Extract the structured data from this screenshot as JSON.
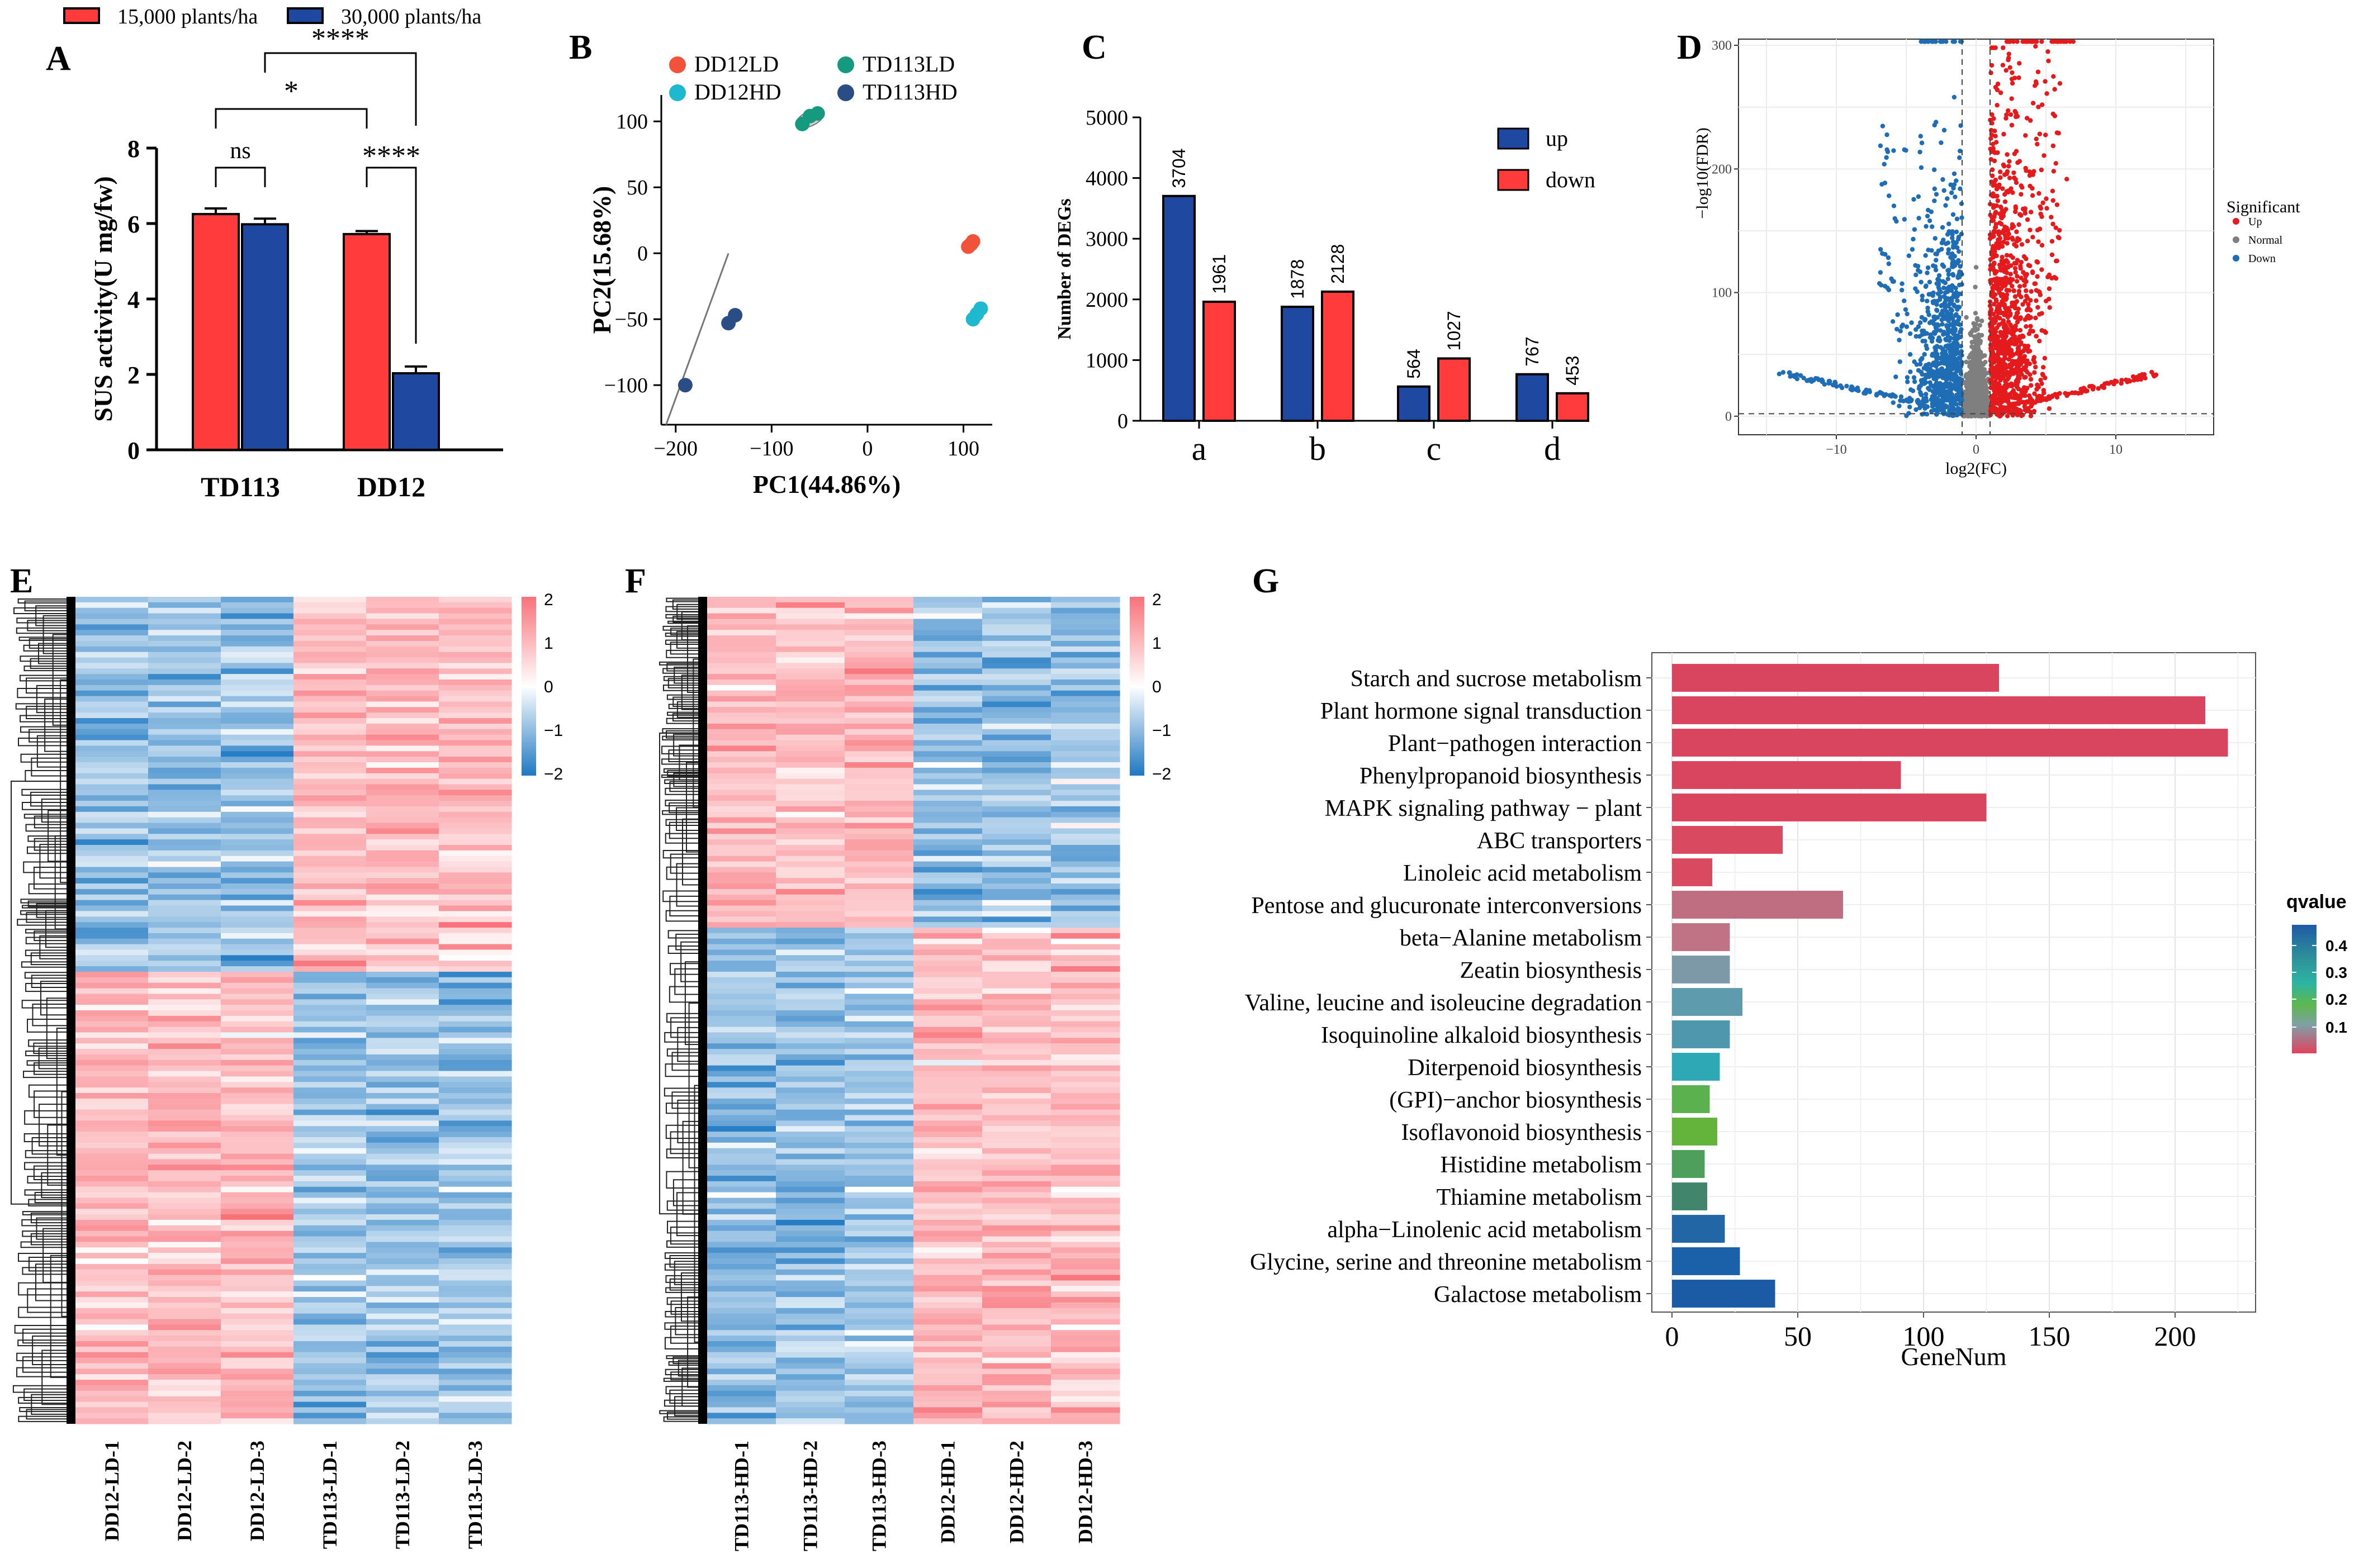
{
  "chart_data": [
    {
      "panel": "A",
      "type": "bar",
      "ylabel": "SUS activity(U mg/fw)",
      "ylim": [
        0,
        8
      ],
      "yticks": [
        0,
        2,
        4,
        6,
        8
      ],
      "categories": [
        "TD113",
        "DD12"
      ],
      "series": [
        {
          "name": "15,000 plants/ha",
          "color": "#FF3B3B",
          "values": [
            6.25,
            5.72
          ],
          "errors": [
            0.15,
            0.08
          ]
        },
        {
          "name": "30,000 plants/ha",
          "color": "#1F48A0",
          "values": [
            5.98,
            2.03
          ],
          "errors": [
            0.15,
            0.18
          ]
        }
      ],
      "annotations": [
        "ns",
        "****",
        "*",
        "****"
      ]
    },
    {
      "panel": "B",
      "type": "scatter",
      "xlabel": "PC1(44.86%)",
      "ylabel": "PC2(15.68%)",
      "xlim": [
        -215,
        130
      ],
      "ylim": [
        -130,
        120
      ],
      "xticks": [
        -200,
        -100,
        0,
        100
      ],
      "yticks": [
        -100,
        -50,
        0,
        50,
        100
      ],
      "series": [
        {
          "name": "DD12LD",
          "color": "#F0533A",
          "points": [
            [
              105,
              5
            ],
            [
              108,
              7
            ],
            [
              110,
              9
            ]
          ]
        },
        {
          "name": "DD12HD",
          "color": "#1FB9CF",
          "points": [
            [
              110,
              -50
            ],
            [
              114,
              -46
            ],
            [
              118,
              -42
            ]
          ]
        },
        {
          "name": "TD113LD",
          "color": "#159A7F",
          "points": [
            [
              -68,
              98
            ],
            [
              -60,
              104
            ],
            [
              -52,
              106
            ]
          ]
        },
        {
          "name": "TD113HD",
          "color": "#2A4D86",
          "points": [
            [
              -190,
              -100
            ],
            [
              -145,
              -53
            ],
            [
              -138,
              -47
            ]
          ]
        }
      ]
    },
    {
      "panel": "C",
      "type": "bar",
      "ylabel": "Number of DEGs",
      "ylim": [
        0,
        5000
      ],
      "yticks": [
        0,
        1000,
        2000,
        3000,
        4000,
        5000
      ],
      "categories": [
        "a",
        "b",
        "c",
        "d"
      ],
      "series": [
        {
          "name": "up",
          "color": "#1F48A0",
          "values": [
            3704,
            1878,
            564,
            767
          ]
        },
        {
          "name": "down",
          "color": "#FF3B3B",
          "values": [
            1961,
            2128,
            1027,
            453
          ]
        }
      ]
    },
    {
      "panel": "D",
      "type": "scatter",
      "xlabel": "log2(FC)",
      "ylabel": "−log10(FDR)",
      "xlim": [
        -17,
        17
      ],
      "ylim": [
        -15,
        305
      ],
      "xticks": [
        -10,
        0,
        10
      ],
      "yticks": [
        0,
        100,
        200,
        300
      ],
      "legend_title": "Significant",
      "series": [
        {
          "name": "Up",
          "color": "#E41A1C"
        },
        {
          "name": "Normal",
          "color": "#7F7F7F"
        },
        {
          "name": "Down",
          "color": "#1F6DB4"
        }
      ]
    },
    {
      "panel": "E",
      "type": "heatmap",
      "columns": [
        "DD12-LD-1",
        "DD12-LD-2",
        "DD12-LD-3",
        "TD113-LD-1",
        "TD113-LD-2",
        "TD113-LD-3"
      ],
      "colorbar": [
        2,
        1,
        0,
        -1,
        -2
      ]
    },
    {
      "panel": "F",
      "type": "heatmap",
      "columns": [
        "TD113-HD-1",
        "TD113-HD-2",
        "TD113-HD-3",
        "DD12-HD-1",
        "DD12-HD-2",
        "DD12-HD-3"
      ],
      "colorbar": [
        2,
        1,
        0,
        -1,
        -2
      ]
    },
    {
      "panel": "G",
      "type": "bar",
      "orientation": "horizontal",
      "xlabel": "GeneNum",
      "xlim": [
        -8,
        232
      ],
      "xticks": [
        0,
        50,
        100,
        150,
        200
      ],
      "legend_title": "qvalue",
      "legend_ticks": [
        0.4,
        0.3,
        0.2,
        0.1
      ],
      "categories": [
        "Starch and sucrose metabolism",
        "Plant hormone signal transduction",
        "Plant−pathogen interaction",
        "Phenylpropanoid biosynthesis",
        "MAPK signaling pathway − plant",
        "ABC transporters",
        "Linoleic acid metabolism",
        "Pentose and glucuronate interconversions",
        "beta−Alanine metabolism",
        "Zeatin biosynthesis",
        "Valine, leucine and isoleucine degradation",
        "Isoquinoline alkaloid biosynthesis",
        "Diterpenoid biosynthesis",
        "(GPI)−anchor biosynthesis",
        "Isoflavonoid biosynthesis",
        "Histidine metabolism",
        "Thiamine metabolism",
        "alpha−Linolenic acid metabolism",
        "Glycine, serine and threonine metabolism",
        "Galactose metabolism"
      ],
      "values": [
        130,
        212,
        221,
        91,
        125,
        44,
        16,
        68,
        23,
        23,
        28,
        23,
        19,
        15,
        18,
        13,
        14,
        21,
        27,
        41
      ],
      "colors": [
        "#D9445E",
        "#D9445E",
        "#D9445E",
        "#D9445E",
        "#D9445E",
        "#D9495F",
        "#D94A60",
        "#BE6E80",
        "#BF7385",
        "#7D98A6",
        "#5E9BAD",
        "#4E97AC",
        "#2EA8B4",
        "#5AB14E",
        "#64B43C",
        "#4E9F5B",
        "#41866C",
        "#2266A5",
        "#1B61A9",
        "#1B5BA6"
      ]
    }
  ],
  "panel_letters": [
    "A",
    "B",
    "C",
    "D",
    "E",
    "F",
    "G"
  ]
}
